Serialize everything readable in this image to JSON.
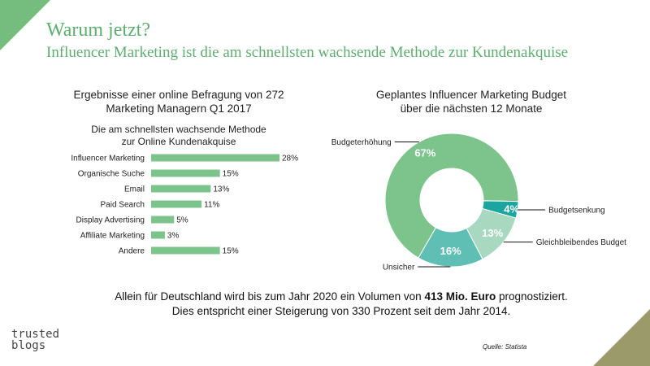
{
  "header": {
    "title": "Warum jetzt?",
    "subtitle": "Influencer Marketing ist die am schnellsten wachsende Methode zur Kundenakquise"
  },
  "bar_chart": {
    "title_line1": "Ergebnisse einer online Befragung von 272",
    "title_line2": "Marketing Managern Q1 2017",
    "subtitle_line1": "Die am schnellsten wachsende Methode",
    "subtitle_line2": "zur Online Kundenakquise"
  },
  "pie_chart": {
    "title_line1": "Geplantes Influencer Marketing Budget",
    "title_line2": "über die nächsten 12 Monate"
  },
  "footer": {
    "line1_prefix": "Allein für Deutschland wird bis zum Jahr 2020 ein Volumen von ",
    "line1_bold": "413 Mio. Euro",
    "line1_suffix": " prognostiziert.",
    "line2": "Dies entspricht einer Steigerung von 330 Prozent seit dem Jahr 2014.",
    "source": "Quelle: Statista"
  },
  "logo": {
    "line1": "trusted",
    "line2": "blogs"
  },
  "colors": {
    "accent": "#74bd7f",
    "bar": "#7cc48c",
    "corner_br": "#9a9a6a"
  },
  "chart_data": [
    {
      "type": "bar",
      "orientation": "horizontal",
      "categories": [
        "Influencer Marketing",
        "Organische Suche",
        "Email",
        "Paid Search",
        "Display Advertising",
        "Affiliate Marketing",
        "Andere"
      ],
      "values": [
        28,
        15,
        13,
        11,
        5,
        3,
        15
      ],
      "value_labels": [
        "28%",
        "15%",
        "13%",
        "11%",
        "5%",
        "3%",
        "15%"
      ],
      "xlim": [
        0,
        28
      ],
      "unit": "%"
    },
    {
      "type": "pie",
      "variant": "donut",
      "labels": [
        "Budgeterhöhung",
        "Budgetsenkung",
        "Gleichbleibendes Budget",
        "Unsicher"
      ],
      "values": [
        67,
        4,
        13,
        16
      ],
      "value_labels": [
        "67%",
        "4%",
        "13%",
        "16%"
      ],
      "colors": [
        "#7cc48c",
        "#1aa69e",
        "#a9d8c0",
        "#5fbfb4"
      ]
    }
  ]
}
